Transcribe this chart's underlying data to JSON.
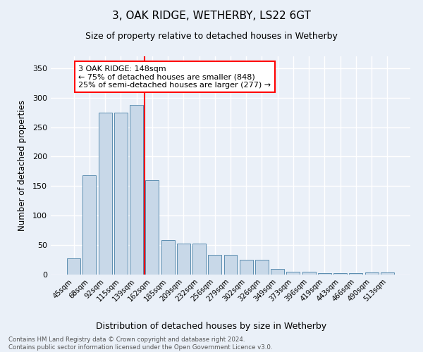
{
  "title": "3, OAK RIDGE, WETHERBY, LS22 6GT",
  "subtitle": "Size of property relative to detached houses in Wetherby",
  "xlabel": "Distribution of detached houses by size in Wetherby",
  "ylabel": "Number of detached properties",
  "footnote1": "Contains HM Land Registry data © Crown copyright and database right 2024.",
  "footnote2": "Contains public sector information licensed under the Open Government Licence v3.0.",
  "categories": [
    "45sqm",
    "68sqm",
    "92sqm",
    "115sqm",
    "139sqm",
    "162sqm",
    "185sqm",
    "209sqm",
    "232sqm",
    "256sqm",
    "279sqm",
    "302sqm",
    "326sqm",
    "349sqm",
    "373sqm",
    "396sqm",
    "419sqm",
    "443sqm",
    "466sqm",
    "490sqm",
    "513sqm"
  ],
  "values": [
    28,
    168,
    275,
    275,
    288,
    160,
    58,
    53,
    53,
    33,
    33,
    25,
    25,
    10,
    5,
    5,
    2,
    2,
    2,
    4,
    4
  ],
  "bar_color": "#c8d8e8",
  "bar_edge_color": "#5b8db0",
  "annotation_title": "3 OAK RIDGE: 148sqm",
  "annotation_line1": "← 75% of detached houses are smaller (848)",
  "annotation_line2": "25% of semi-detached houses are larger (277) →",
  "ylim": [
    0,
    370
  ],
  "yticks": [
    0,
    50,
    100,
    150,
    200,
    250,
    300,
    350
  ],
  "background_color": "#eaf0f8",
  "grid_color": "#ffffff"
}
